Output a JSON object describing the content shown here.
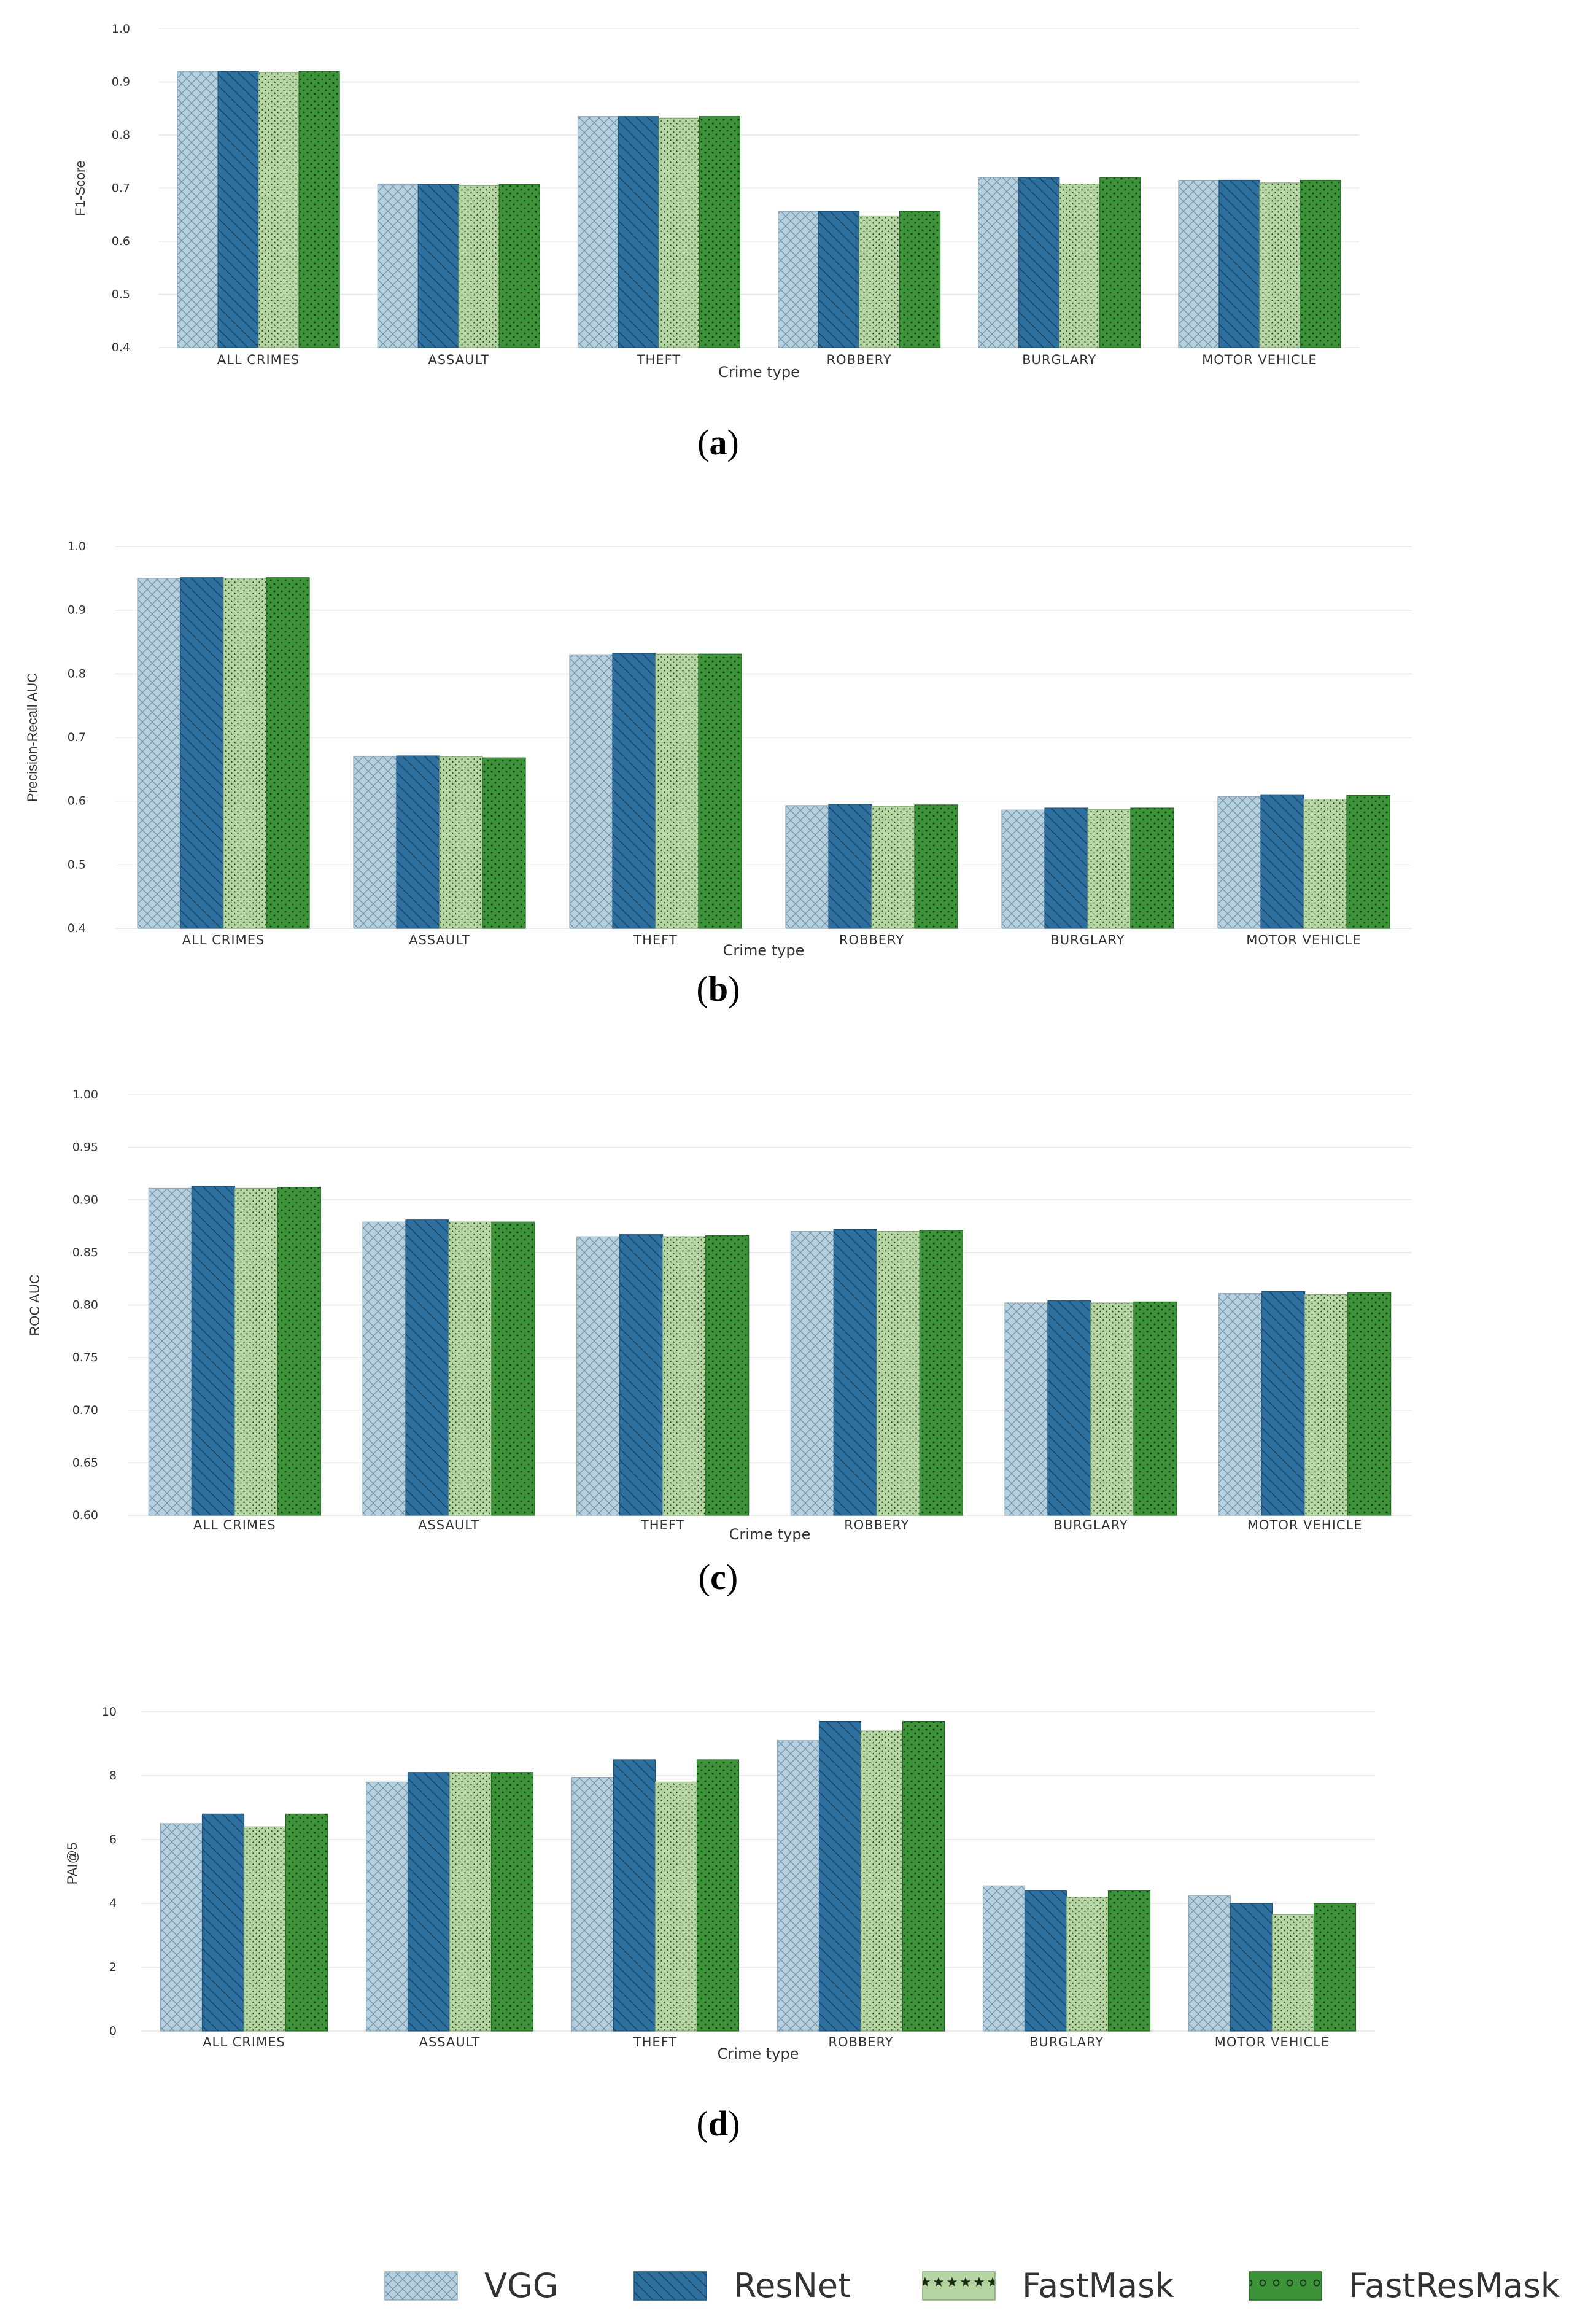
{
  "series_names": [
    "VGG",
    "ResNet",
    "FastMask",
    "FastResMask"
  ],
  "colors": {
    "VGG": "#b6cfdd",
    "ResNet": "#2d6f9e",
    "FastMask": "#b5d6a2",
    "FastResMask": "#3d9438"
  },
  "chart_data": [
    {
      "type": "bar",
      "panel_label": "a",
      "categories": [
        "ALL CRIMES",
        "ASSAULT",
        "THEFT",
        "ROBBERY",
        "BURGLARY",
        "MOTOR VEHICLE"
      ],
      "series": [
        {
          "name": "VGG",
          "values": [
            0.92,
            0.707,
            0.835,
            0.656,
            0.72,
            0.715
          ]
        },
        {
          "name": "ResNet",
          "values": [
            0.92,
            0.707,
            0.835,
            0.656,
            0.72,
            0.715
          ]
        },
        {
          "name": "FastMask",
          "values": [
            0.918,
            0.705,
            0.832,
            0.648,
            0.708,
            0.71
          ]
        },
        {
          "name": "FastResMask",
          "values": [
            0.92,
            0.707,
            0.835,
            0.656,
            0.72,
            0.715
          ]
        }
      ],
      "title": "",
      "xlabel": "Crime type",
      "ylabel": "F1-Score",
      "ylim": [
        0.4,
        1.0
      ],
      "yticks": [
        0.4,
        0.5,
        0.6,
        0.7,
        0.8,
        0.9,
        1.0
      ],
      "ytick_labels": [
        "0.4",
        "0.5",
        "0.6",
        "0.7",
        "0.8",
        "0.9",
        "1.0"
      ]
    },
    {
      "type": "bar",
      "panel_label": "b",
      "categories": [
        "ALL CRIMES",
        "ASSAULT",
        "THEFT",
        "ROBBERY",
        "BURGLARY",
        "MOTOR VEHICLE"
      ],
      "series": [
        {
          "name": "VGG",
          "values": [
            0.95,
            0.67,
            0.83,
            0.593,
            0.586,
            0.607
          ]
        },
        {
          "name": "ResNet",
          "values": [
            0.951,
            0.671,
            0.832,
            0.595,
            0.589,
            0.61
          ]
        },
        {
          "name": "FastMask",
          "values": [
            0.95,
            0.67,
            0.831,
            0.592,
            0.587,
            0.603
          ]
        },
        {
          "name": "FastResMask",
          "values": [
            0.951,
            0.668,
            0.831,
            0.594,
            0.589,
            0.609
          ]
        }
      ],
      "title": "",
      "xlabel": "Crime type",
      "ylabel": "Precision-Recall AUC",
      "ylim": [
        0.4,
        1.0
      ],
      "yticks": [
        0.4,
        0.5,
        0.6,
        0.7,
        0.8,
        0.9,
        1.0
      ],
      "ytick_labels": [
        "0.4",
        "0.5",
        "0.6",
        "0.7",
        "0.8",
        "0.9",
        "1.0"
      ]
    },
    {
      "type": "bar",
      "panel_label": "c",
      "categories": [
        "ALL CRIMES",
        "ASSAULT",
        "THEFT",
        "ROBBERY",
        "BURGLARY",
        "MOTOR VEHICLE"
      ],
      "series": [
        {
          "name": "VGG",
          "values": [
            0.911,
            0.879,
            0.865,
            0.87,
            0.802,
            0.811
          ]
        },
        {
          "name": "ResNet",
          "values": [
            0.913,
            0.881,
            0.867,
            0.872,
            0.804,
            0.813
          ]
        },
        {
          "name": "FastMask",
          "values": [
            0.911,
            0.879,
            0.865,
            0.87,
            0.802,
            0.81
          ]
        },
        {
          "name": "FastResMask",
          "values": [
            0.912,
            0.879,
            0.866,
            0.871,
            0.803,
            0.812
          ]
        }
      ],
      "title": "",
      "xlabel": "Crime type",
      "ylabel": "ROC AUC",
      "ylim": [
        0.6,
        1.0
      ],
      "yticks": [
        0.6,
        0.65,
        0.7,
        0.75,
        0.8,
        0.85,
        0.9,
        0.95,
        1.0
      ],
      "ytick_labels": [
        "0.60",
        "0.65",
        "0.70",
        "0.75",
        "0.80",
        "0.85",
        "0.90",
        "0.95",
        "1.00"
      ]
    },
    {
      "type": "bar",
      "panel_label": "d",
      "categories": [
        "ALL CRIMES",
        "ASSAULT",
        "THEFT",
        "ROBBERY",
        "BURGLARY",
        "MOTOR VEHICLE"
      ],
      "series": [
        {
          "name": "VGG",
          "values": [
            6.5,
            7.8,
            7.95,
            9.1,
            4.55,
            4.25
          ]
        },
        {
          "name": "ResNet",
          "values": [
            6.8,
            8.1,
            8.5,
            9.7,
            4.4,
            4.0
          ]
        },
        {
          "name": "FastMask",
          "values": [
            6.4,
            8.1,
            7.8,
            9.4,
            4.2,
            3.65
          ]
        },
        {
          "name": "FastResMask",
          "values": [
            6.8,
            8.1,
            8.5,
            9.7,
            4.4,
            4.0
          ]
        }
      ],
      "title": "",
      "xlabel": "Crime type",
      "ylabel": "PAI@5",
      "ylim": [
        0,
        10.5
      ],
      "yticks": [
        0,
        2,
        4,
        6,
        8,
        10
      ],
      "ytick_labels": [
        "0",
        "2",
        "4",
        "6",
        "8",
        "10"
      ]
    }
  ]
}
